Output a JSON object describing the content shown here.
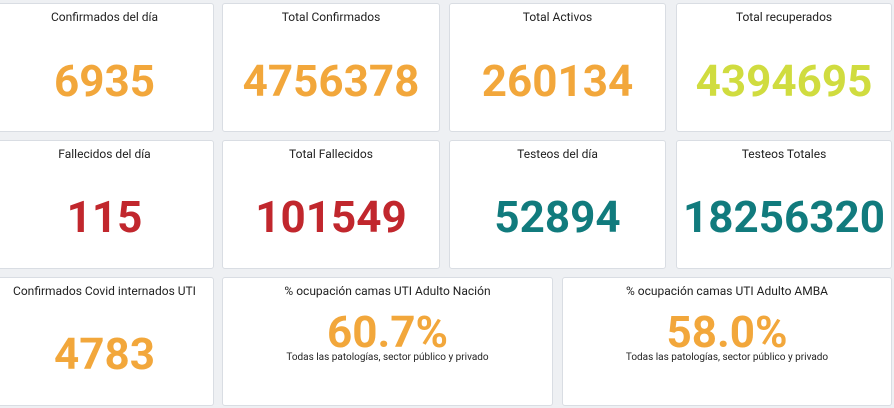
{
  "cards": [
    {
      "title": "Confirmados del día",
      "value": "6935"
    },
    {
      "title": "Total Confirmados",
      "value": "4756378"
    },
    {
      "title": "Total Activos",
      "value": "260134"
    },
    {
      "title": "Total recuperados",
      "value": "4394695"
    },
    {
      "title": "Fallecidos del día",
      "value": "115"
    },
    {
      "title": "Total Fallecidos",
      "value": "101549"
    },
    {
      "title": "Testeos del día",
      "value": "52894"
    },
    {
      "title": "Testeos Totales",
      "value": "18256320"
    },
    {
      "title": "Confirmados Covid internados UTI",
      "value": "4783"
    },
    {
      "title": "% ocupación camas UTI Adulto Nación",
      "value": "60.7%",
      "note": "Todas las patologías, sector público y privado"
    },
    {
      "title": "% ocupación camas UTI Adulto AMBA",
      "value": "58.0%",
      "note": "Todas las patologías, sector público y privado"
    }
  ]
}
